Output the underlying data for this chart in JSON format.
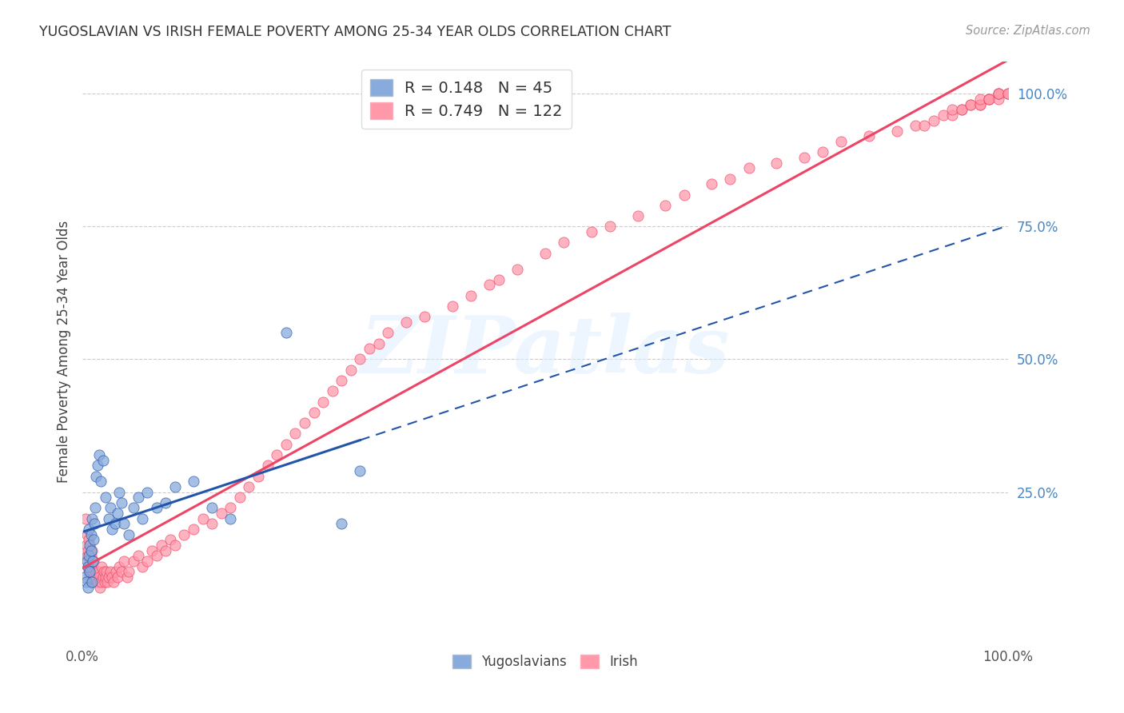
{
  "title": "YUGOSLAVIAN VS IRISH FEMALE POVERTY AMONG 25-34 YEAR OLDS CORRELATION CHART",
  "source": "Source: ZipAtlas.com",
  "ylabel": "Female Poverty Among 25-34 Year Olds",
  "yug_R": 0.148,
  "yug_N": 45,
  "irish_R": 0.749,
  "irish_N": 122,
  "yug_color": "#88AADD",
  "irish_color": "#FF99AA",
  "yug_line_color": "#2255AA",
  "irish_line_color": "#EE4466",
  "background_color": "#FFFFFF",
  "watermark": "ZIPatlas",
  "ytick_labels": [
    "25.0%",
    "50.0%",
    "75.0%",
    "100.0%"
  ],
  "ytick_values": [
    0.25,
    0.5,
    0.75,
    1.0
  ],
  "yug_x": [
    0.002,
    0.004,
    0.005,
    0.006,
    0.006,
    0.007,
    0.007,
    0.008,
    0.008,
    0.009,
    0.009,
    0.01,
    0.01,
    0.011,
    0.012,
    0.013,
    0.014,
    0.015,
    0.016,
    0.018,
    0.02,
    0.022,
    0.025,
    0.028,
    0.03,
    0.032,
    0.035,
    0.038,
    0.04,
    0.042,
    0.045,
    0.05,
    0.055,
    0.06,
    0.065,
    0.07,
    0.08,
    0.09,
    0.1,
    0.12,
    0.14,
    0.16,
    0.22,
    0.28,
    0.3
  ],
  "yug_y": [
    0.09,
    0.08,
    0.12,
    0.11,
    0.07,
    0.13,
    0.18,
    0.15,
    0.1,
    0.17,
    0.14,
    0.2,
    0.08,
    0.12,
    0.16,
    0.19,
    0.22,
    0.28,
    0.3,
    0.32,
    0.27,
    0.31,
    0.24,
    0.2,
    0.22,
    0.18,
    0.19,
    0.21,
    0.25,
    0.23,
    0.19,
    0.17,
    0.22,
    0.24,
    0.2,
    0.25,
    0.22,
    0.23,
    0.26,
    0.27,
    0.22,
    0.2,
    0.55,
    0.19,
    0.29
  ],
  "irish_x": [
    0.003,
    0.004,
    0.005,
    0.005,
    0.006,
    0.006,
    0.007,
    0.007,
    0.008,
    0.008,
    0.009,
    0.009,
    0.01,
    0.01,
    0.011,
    0.011,
    0.012,
    0.013,
    0.014,
    0.015,
    0.016,
    0.017,
    0.018,
    0.019,
    0.02,
    0.021,
    0.022,
    0.023,
    0.024,
    0.025,
    0.026,
    0.027,
    0.028,
    0.03,
    0.032,
    0.034,
    0.036,
    0.038,
    0.04,
    0.042,
    0.045,
    0.048,
    0.05,
    0.055,
    0.06,
    0.065,
    0.07,
    0.075,
    0.08,
    0.085,
    0.09,
    0.095,
    0.1,
    0.11,
    0.12,
    0.13,
    0.14,
    0.15,
    0.16,
    0.17,
    0.18,
    0.19,
    0.2,
    0.21,
    0.22,
    0.23,
    0.24,
    0.25,
    0.26,
    0.27,
    0.28,
    0.29,
    0.3,
    0.31,
    0.32,
    0.33,
    0.35,
    0.37,
    0.4,
    0.42,
    0.44,
    0.45,
    0.47,
    0.5,
    0.52,
    0.55,
    0.57,
    0.6,
    0.63,
    0.65,
    0.68,
    0.7,
    0.72,
    0.75,
    0.78,
    0.8,
    0.82,
    0.85,
    0.88,
    0.9,
    0.91,
    0.92,
    0.93,
    0.94,
    0.94,
    0.95,
    0.95,
    0.96,
    0.96,
    0.97,
    0.97,
    0.97,
    0.98,
    0.98,
    0.98,
    0.99,
    0.99,
    0.99,
    0.99,
    1.0,
    1.0,
    1.0
  ],
  "irish_y": [
    0.2,
    0.15,
    0.17,
    0.13,
    0.11,
    0.14,
    0.1,
    0.16,
    0.12,
    0.09,
    0.13,
    0.08,
    0.1,
    0.14,
    0.11,
    0.08,
    0.12,
    0.09,
    0.1,
    0.09,
    0.08,
    0.1,
    0.09,
    0.07,
    0.08,
    0.11,
    0.09,
    0.1,
    0.08,
    0.09,
    0.1,
    0.08,
    0.09,
    0.1,
    0.09,
    0.08,
    0.1,
    0.09,
    0.11,
    0.1,
    0.12,
    0.09,
    0.1,
    0.12,
    0.13,
    0.11,
    0.12,
    0.14,
    0.13,
    0.15,
    0.14,
    0.16,
    0.15,
    0.17,
    0.18,
    0.2,
    0.19,
    0.21,
    0.22,
    0.24,
    0.26,
    0.28,
    0.3,
    0.32,
    0.34,
    0.36,
    0.38,
    0.4,
    0.42,
    0.44,
    0.46,
    0.48,
    0.5,
    0.52,
    0.53,
    0.55,
    0.57,
    0.58,
    0.6,
    0.62,
    0.64,
    0.65,
    0.67,
    0.7,
    0.72,
    0.74,
    0.75,
    0.77,
    0.79,
    0.81,
    0.83,
    0.84,
    0.86,
    0.87,
    0.88,
    0.89,
    0.91,
    0.92,
    0.93,
    0.94,
    0.94,
    0.95,
    0.96,
    0.96,
    0.97,
    0.97,
    0.97,
    0.98,
    0.98,
    0.98,
    0.98,
    0.99,
    0.99,
    0.99,
    0.99,
    0.99,
    1.0,
    1.0,
    1.0,
    1.0,
    1.0,
    1.0
  ]
}
